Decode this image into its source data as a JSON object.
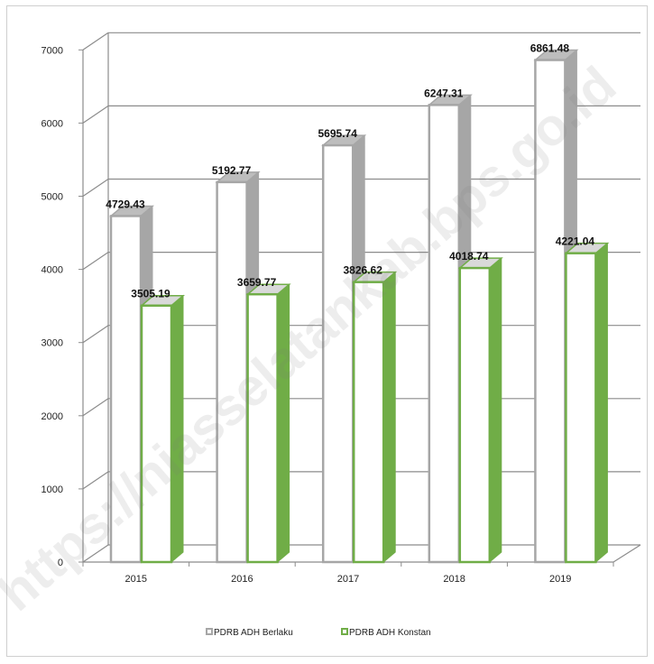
{
  "chart_data": {
    "type": "bar",
    "title": "",
    "xlabel": "",
    "ylabel": "",
    "categories": [
      "2015",
      "2016",
      "2017",
      "2018",
      "2019"
    ],
    "series": [
      {
        "name": "PDRB ADH Berlaku",
        "values": [
          4729.43,
          5192.77,
          5695.74,
          6247.31,
          6861.48
        ],
        "color": "#a6a6a6"
      },
      {
        "name": "PDRB ADH Konstan",
        "values": [
          3505.19,
          3659.77,
          3826.62,
          4018.74,
          4221.04
        ],
        "color": "#70ad47"
      }
    ],
    "value_labels": {
      "berlaku": [
        "4729.43",
        "5192.77",
        "5695.74",
        "6247.31",
        "6861.48"
      ],
      "konstan": [
        "3505.19",
        "3659.77",
        "3826.62",
        "4018.74",
        "4221.04"
      ]
    },
    "yticks": [
      "0",
      "1000",
      "2000",
      "3000",
      "4000",
      "5000",
      "6000",
      "7000"
    ],
    "ylim": [
      0,
      7000
    ],
    "grid": true,
    "style": "3d-column",
    "legend_position": "bottom"
  },
  "watermark": "https://niasselatankab.bps.go.id"
}
